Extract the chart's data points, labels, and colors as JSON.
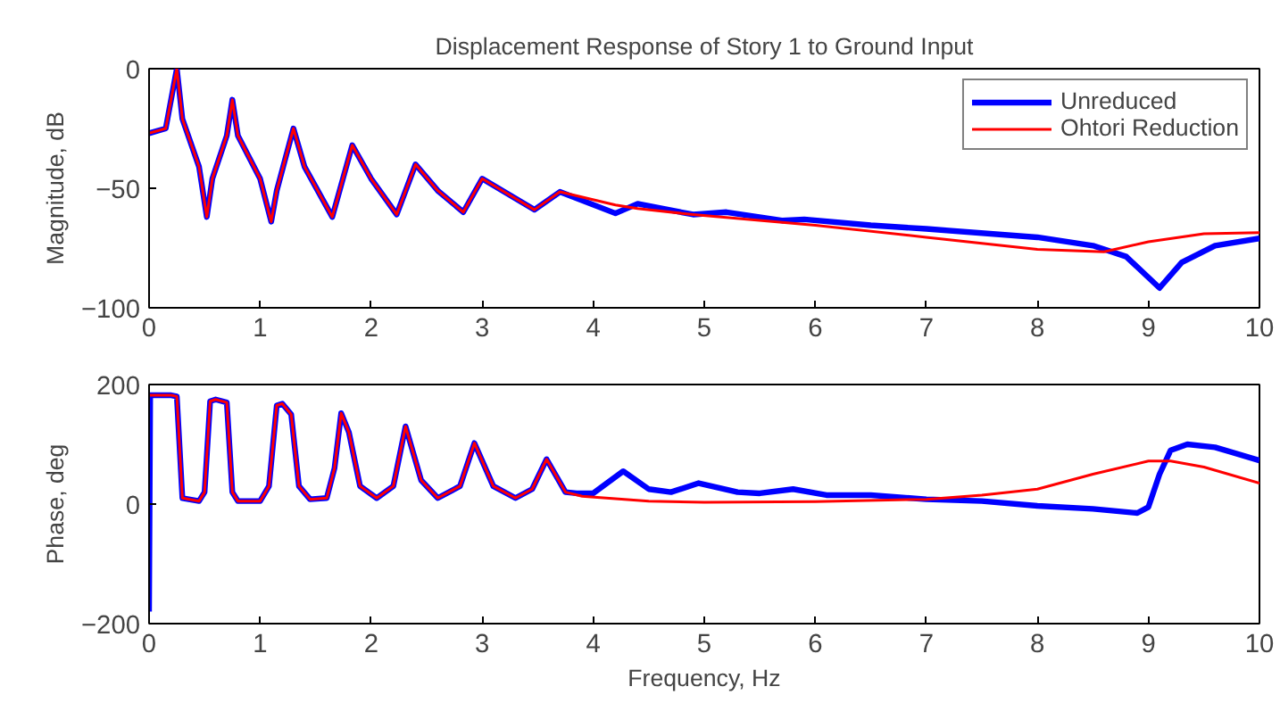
{
  "chart_data": [
    {
      "type": "line",
      "title": "Displacement Response of Story 1 to Ground Input",
      "ylabel": "Magnitude, dB",
      "xlim": [
        0,
        10
      ],
      "ylim": [
        -100,
        0
      ],
      "xticks": [
        0,
        1,
        2,
        3,
        4,
        5,
        6,
        7,
        8,
        9,
        10
      ],
      "yticks": [
        {
          "value": -100,
          "label": "−100"
        },
        {
          "value": -50,
          "label": "−50"
        },
        0
      ],
      "grid": false,
      "legend": "top right",
      "line_style": "solid",
      "marker": "none",
      "series": [
        {
          "name": "Unreduced",
          "color": "#0000ff",
          "x": [
            0,
            0.15,
            0.25,
            0.3,
            0.45,
            0.52,
            0.57,
            0.7,
            0.75,
            0.8,
            1.0,
            1.1,
            1.15,
            1.3,
            1.4,
            1.65,
            1.83,
            2.0,
            2.23,
            2.4,
            2.6,
            2.83,
            3.0,
            3.47,
            3.7,
            4.2,
            4.4,
            4.9,
            5.2,
            5.7,
            5.9,
            6.5,
            7,
            8,
            8.5,
            8.8,
            9.1,
            9.3,
            9.6,
            10
          ],
          "values": [
            -27,
            -25,
            0,
            -21,
            -41,
            -62,
            -46,
            -28,
            -13,
            -28,
            -46,
            -64,
            -51,
            -25,
            -41,
            -62,
            -32,
            -46,
            -61,
            -40,
            -51,
            -60,
            -46,
            -59,
            -51.5,
            -60.5,
            -56.5,
            -61,
            -60,
            -63.5,
            -63,
            -65.5,
            -67,
            -70.5,
            -74,
            -78.6,
            -91.7,
            -81,
            -74,
            -71
          ]
        },
        {
          "name": "Ohtori Reduction",
          "color": "#ff0000",
          "x": [
            0,
            0.15,
            0.25,
            0.3,
            0.45,
            0.52,
            0.57,
            0.7,
            0.75,
            0.8,
            1.0,
            1.1,
            1.15,
            1.3,
            1.4,
            1.65,
            1.83,
            2.0,
            2.23,
            2.4,
            2.6,
            2.83,
            3.0,
            3.47,
            3.7,
            4.2,
            4.4,
            4.9,
            6,
            7,
            8,
            8.6,
            9,
            9.5,
            10
          ],
          "values": [
            -27,
            -25,
            0,
            -21,
            -41,
            -62,
            -46,
            -28,
            -13,
            -28,
            -46,
            -64,
            -51,
            -25,
            -41,
            -62,
            -32,
            -46,
            -61,
            -40,
            -51,
            -60,
            -46,
            -59,
            -51.5,
            -57,
            -58.5,
            -61,
            -65.5,
            -70.5,
            -75.6,
            -76.6,
            -72.4,
            -69,
            -68.6
          ]
        }
      ]
    },
    {
      "type": "line",
      "xlabel": "Frequency, Hz",
      "ylabel": "Phase, deg",
      "xlim": [
        0,
        10
      ],
      "ylim": [
        -200,
        200
      ],
      "xticks": [
        0,
        1,
        2,
        3,
        4,
        5,
        6,
        7,
        8,
        9,
        10
      ],
      "yticks": [
        {
          "value": -200,
          "label": "−200"
        },
        0,
        200
      ],
      "grid": false,
      "legend": false,
      "line_style": "solid",
      "marker": "none",
      "series": [
        {
          "color": "#0000ff",
          "x": [
            0,
            0.01,
            0.2,
            0.25,
            0.3,
            0.45,
            0.5,
            0.55,
            0.6,
            0.7,
            0.75,
            0.8,
            1.0,
            1.08,
            1.15,
            1.2,
            1.28,
            1.35,
            1.45,
            1.6,
            1.67,
            1.73,
            1.8,
            1.9,
            2.05,
            2.2,
            2.31,
            2.45,
            2.6,
            2.8,
            2.93,
            3.1,
            3.3,
            3.45,
            3.58,
            3.75,
            3.85,
            4.0,
            4.27,
            4.5,
            4.7,
            4.95,
            5.3,
            5.5,
            5.8,
            6.1,
            6.5,
            7,
            7.5,
            8,
            8.5,
            8.9,
            9.0,
            9.1,
            9.2,
            9.35,
            9.6,
            10
          ],
          "values": [
            -180,
            182,
            182,
            180,
            10,
            5,
            20,
            172,
            175,
            170,
            20,
            5,
            5,
            30,
            165,
            168,
            150,
            30,
            8,
            10,
            60,
            152,
            120,
            30,
            10,
            30,
            130,
            40,
            10,
            30,
            102,
            30,
            10,
            25,
            75,
            20,
            18,
            18,
            55,
            25,
            20,
            35,
            20,
            18,
            25,
            15,
            15,
            8,
            5,
            -3,
            -8,
            -15,
            -5,
            50,
            90,
            100,
            95,
            73
          ]
        },
        {
          "color": "#ff0000",
          "x": [
            0,
            0.2,
            0.25,
            0.3,
            0.45,
            0.5,
            0.55,
            0.6,
            0.7,
            0.75,
            0.8,
            1.0,
            1.08,
            1.15,
            1.2,
            1.28,
            1.35,
            1.45,
            1.6,
            1.67,
            1.73,
            1.8,
            1.9,
            2.05,
            2.2,
            2.31,
            2.45,
            2.6,
            2.8,
            2.93,
            3.1,
            3.3,
            3.45,
            3.58,
            3.75,
            3.9,
            4.5,
            5,
            6,
            7,
            7.5,
            8,
            8.5,
            9.0,
            9.2,
            9.5,
            10
          ],
          "values": [
            182,
            182,
            180,
            10,
            5,
            20,
            172,
            175,
            170,
            20,
            5,
            5,
            30,
            165,
            168,
            150,
            30,
            8,
            10,
            60,
            152,
            120,
            30,
            10,
            30,
            130,
            40,
            10,
            30,
            102,
            30,
            10,
            25,
            75,
            20,
            13,
            5,
            3,
            4,
            8,
            15,
            25,
            50,
            72,
            72,
            62,
            35
          ]
        }
      ]
    }
  ]
}
